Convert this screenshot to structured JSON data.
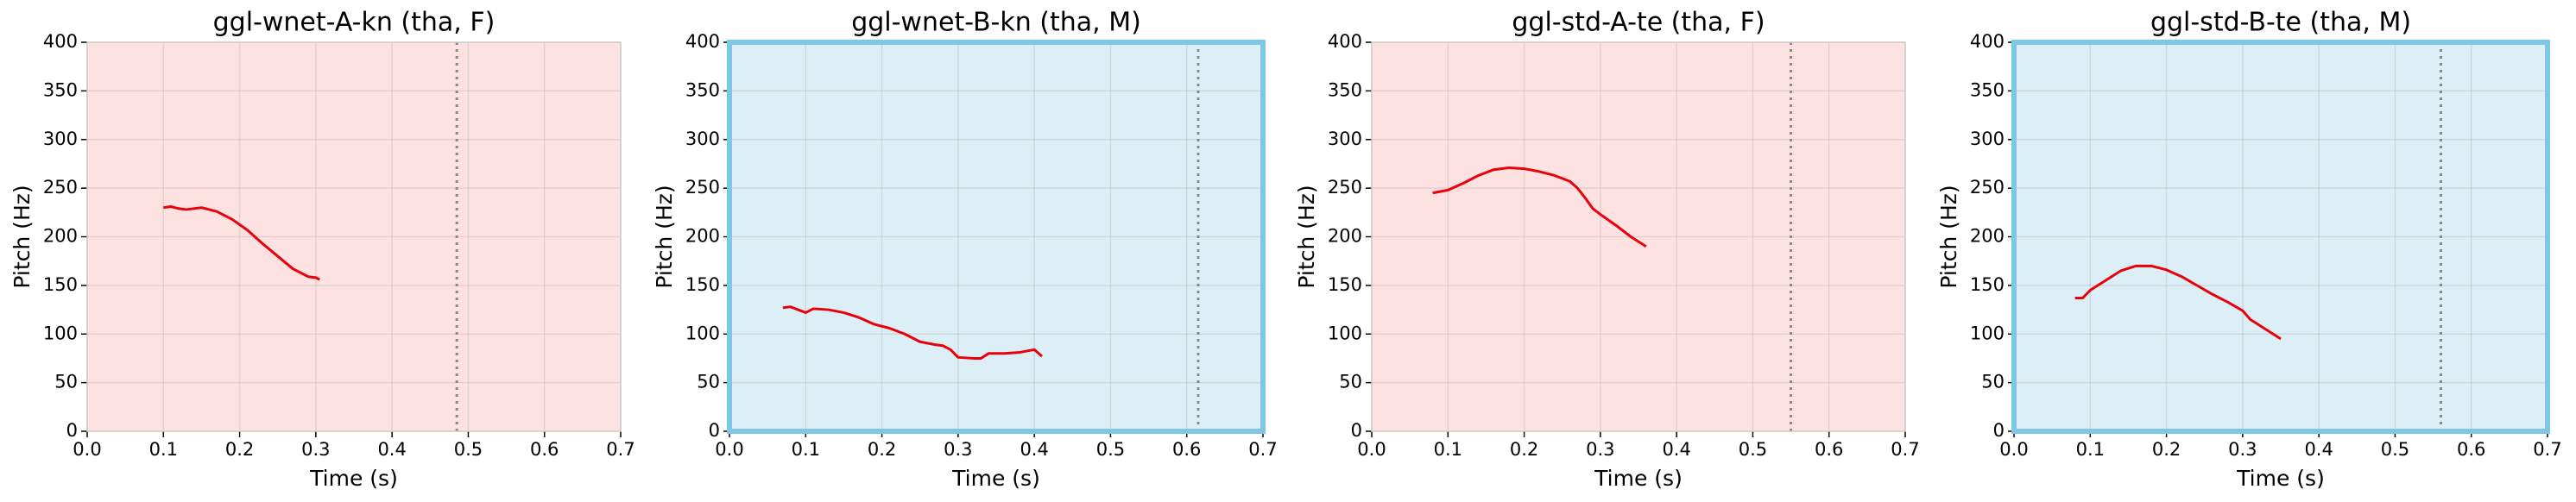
{
  "chart_data": [
    {
      "type": "line",
      "title": "ggl-wnet-A-kn (tha, F)",
      "xlabel": "Time (s)",
      "ylabel": "Pitch (Hz)",
      "xlim": [
        0,
        0.7
      ],
      "ylim": [
        0,
        400
      ],
      "xticks": [
        {
          "value": 0,
          "label": "0.0"
        },
        0.1,
        0.2,
        0.3,
        0.4,
        0.5,
        0.6,
        0.7
      ],
      "yticks": [
        0,
        50,
        100,
        150,
        200,
        250,
        300,
        350,
        400
      ],
      "grid": true,
      "background": "#fee2e1",
      "highlight": false,
      "highlight_color": "#7ec8e3",
      "color": "#e8000b",
      "vline": 0.485,
      "vline_color": "#888888",
      "x": [
        0.1,
        0.11,
        0.12,
        0.13,
        0.15,
        0.17,
        0.19,
        0.21,
        0.23,
        0.25,
        0.27,
        0.28,
        0.29,
        0.3,
        0.305
      ],
      "values": [
        230,
        231,
        229,
        228,
        230,
        226,
        218,
        207,
        193,
        180,
        167,
        163,
        159,
        158,
        156
      ]
    },
    {
      "type": "line",
      "title": "ggl-wnet-B-kn (tha, M)",
      "xlabel": "Time (s)",
      "ylabel": "Pitch (Hz)",
      "xlim": [
        0,
        0.7
      ],
      "ylim": [
        0,
        400
      ],
      "xticks": [
        {
          "value": 0,
          "label": "0.0"
        },
        0.1,
        0.2,
        0.3,
        0.4,
        0.5,
        0.6,
        0.7
      ],
      "yticks": [
        0,
        50,
        100,
        150,
        200,
        250,
        300,
        350,
        400
      ],
      "grid": true,
      "background": "#ddeff6",
      "highlight": true,
      "highlight_color": "#7ec8e3",
      "color": "#e8000b",
      "vline": 0.615,
      "vline_color": "#888888",
      "x": [
        0.07,
        0.08,
        0.09,
        0.1,
        0.11,
        0.13,
        0.15,
        0.17,
        0.19,
        0.21,
        0.23,
        0.25,
        0.27,
        0.28,
        0.29,
        0.3,
        0.32,
        0.33,
        0.34,
        0.36,
        0.38,
        0.4,
        0.41
      ],
      "values": [
        127,
        128,
        125,
        122,
        126,
        125,
        122,
        117,
        110,
        106,
        100,
        92,
        89,
        88,
        84,
        76,
        75,
        75,
        80,
        80,
        81,
        84,
        77
      ]
    },
    {
      "type": "line",
      "title": "ggl-std-A-te (tha, F)",
      "xlabel": "Time (s)",
      "ylabel": "Pitch (Hz)",
      "xlim": [
        0,
        0.7
      ],
      "ylim": [
        0,
        400
      ],
      "xticks": [
        {
          "value": 0,
          "label": "0.0"
        },
        0.1,
        0.2,
        0.3,
        0.4,
        0.5,
        0.6,
        0.7
      ],
      "yticks": [
        0,
        50,
        100,
        150,
        200,
        250,
        300,
        350,
        400
      ],
      "grid": true,
      "background": "#fee2e1",
      "highlight": false,
      "highlight_color": "#7ec8e3",
      "color": "#e8000b",
      "vline": 0.55,
      "vline_color": "#888888",
      "x": [
        0.08,
        0.1,
        0.12,
        0.14,
        0.16,
        0.18,
        0.2,
        0.22,
        0.24,
        0.26,
        0.27,
        0.28,
        0.29,
        0.3,
        0.32,
        0.34,
        0.36
      ],
      "values": [
        245,
        248,
        255,
        263,
        269,
        271,
        270,
        267,
        263,
        257,
        250,
        240,
        229,
        223,
        212,
        200,
        190
      ]
    },
    {
      "type": "line",
      "title": "ggl-std-B-te (tha, M)",
      "xlabel": "Time (s)",
      "ylabel": "Pitch (Hz)",
      "xlim": [
        0,
        0.7
      ],
      "ylim": [
        0,
        400
      ],
      "xticks": [
        {
          "value": 0,
          "label": "0.0"
        },
        0.1,
        0.2,
        0.3,
        0.4,
        0.5,
        0.6,
        0.7
      ],
      "yticks": [
        0,
        50,
        100,
        150,
        200,
        250,
        300,
        350,
        400
      ],
      "grid": true,
      "background": "#ddeff6",
      "highlight": true,
      "highlight_color": "#7ec8e3",
      "color": "#e8000b",
      "vline": 0.56,
      "vline_color": "#888888",
      "x": [
        0.08,
        0.09,
        0.1,
        0.12,
        0.14,
        0.16,
        0.18,
        0.2,
        0.22,
        0.24,
        0.26,
        0.28,
        0.3,
        0.31,
        0.33,
        0.35
      ],
      "values": [
        137,
        137,
        145,
        155,
        165,
        170,
        170,
        166,
        159,
        150,
        141,
        133,
        124,
        115,
        105,
        95
      ]
    }
  ]
}
